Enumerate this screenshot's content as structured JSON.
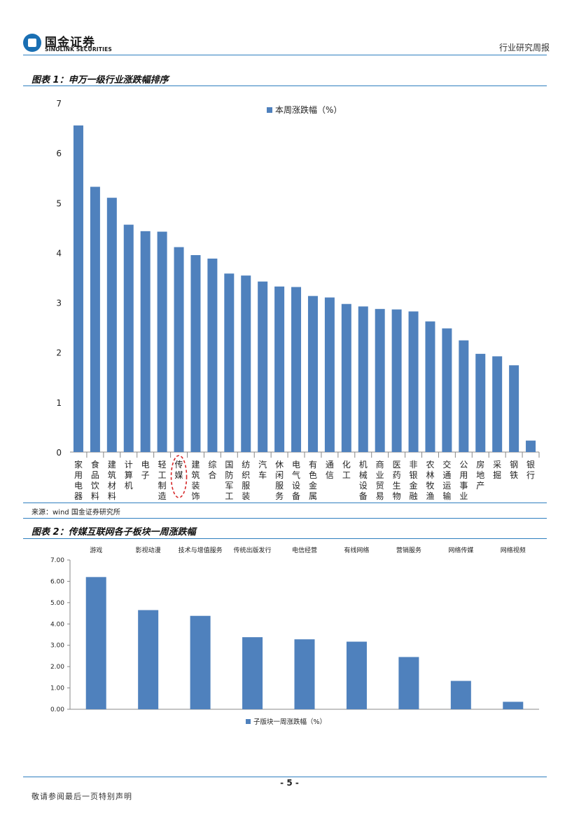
{
  "header": {
    "company_cn": "国金证券",
    "company_en": "SINOLINK SECURITIES",
    "report_type": "行业研究周报"
  },
  "figure1": {
    "title": "图表 1：申万一级行业涨跌幅排序",
    "source": "来源：wind 国金证券研究所"
  },
  "figure2": {
    "title": "图表 2：传媒互联网各子板块一周涨跌幅"
  },
  "footer": {
    "page_number": "- 5 -",
    "disclaimer": "敬请参阅最后一页特别声明"
  },
  "colors": {
    "bar": "#4f81bd",
    "rule": "#2f7fbf",
    "highlight": "#d62728"
  },
  "chart_data": [
    {
      "type": "bar",
      "title": "图表 1：申万一级行业涨跌幅排序",
      "legend": "本周涨跌幅（%）",
      "legend_position": "top-center",
      "xlabel": "",
      "ylabel": "",
      "ylim": [
        0,
        7
      ],
      "yticks": [
        "0",
        "1",
        "2",
        "3",
        "4",
        "5",
        "6",
        "7"
      ],
      "categories": [
        "家用电器",
        "食品饮料",
        "建筑材料",
        "计算机",
        "电子",
        "轻工制造",
        "传媒",
        "建筑装饰",
        "综合",
        "国防军工",
        "纺织服装",
        "汽车",
        "休闲服务",
        "电气设备",
        "有色金属",
        "通信",
        "化工",
        "机械设备",
        "商业贸易",
        "医药生物",
        "非银金融",
        "农林牧渔",
        "交通运输",
        "公用事业",
        "房地产",
        "采掘",
        "钢铁",
        "银行"
      ],
      "values": [
        6.55,
        5.32,
        5.1,
        4.56,
        4.43,
        4.42,
        4.11,
        3.95,
        3.88,
        3.58,
        3.54,
        3.42,
        3.32,
        3.31,
        3.13,
        3.1,
        2.97,
        2.92,
        2.87,
        2.86,
        2.82,
        2.62,
        2.48,
        2.24,
        1.97,
        1.92,
        1.74,
        0.23
      ],
      "highlight": "传媒"
    },
    {
      "type": "bar",
      "title": "图表 2：传媒互联网各子板块一周涨跌幅",
      "legend": "子版块一周涨跌幅（%）",
      "legend_position": "bottom-center",
      "ylim": [
        0,
        7
      ],
      "yticks": [
        "0.00",
        "1.00",
        "2.00",
        "3.00",
        "4.00",
        "5.00",
        "6.00",
        "7.00"
      ],
      "categories": [
        "游戏",
        "影视动漫",
        "技术与增值服务",
        "传统出版发行",
        "电信经营",
        "有线网络",
        "营销服务",
        "网络传媒",
        "网络视频"
      ],
      "values": [
        6.2,
        4.65,
        4.38,
        3.38,
        3.28,
        3.17,
        2.45,
        1.33,
        0.35
      ]
    }
  ]
}
